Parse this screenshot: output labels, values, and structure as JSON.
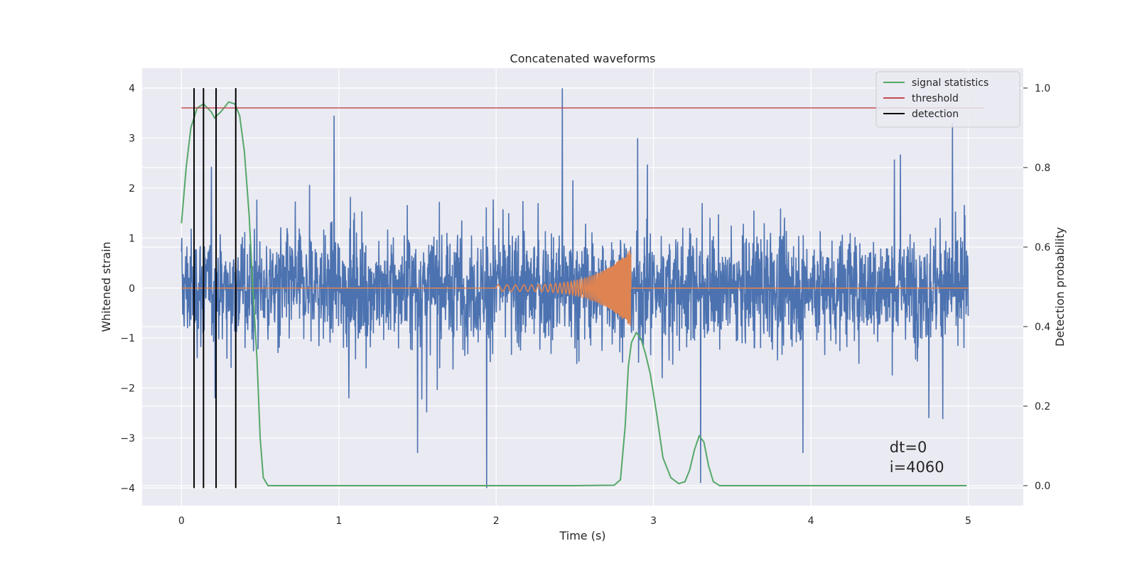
{
  "chart_data": {
    "type": "line",
    "title": "Concatenated waveforms",
    "xlabel": "Time (s)",
    "ylabel": "Whitened strain",
    "y2label": "Detection probability",
    "xlim": [
      -0.25,
      5.35
    ],
    "ylim": [
      -4.35,
      4.4
    ],
    "y2lim": [
      -0.05,
      1.05
    ],
    "xticks": [
      0,
      1,
      2,
      3,
      4,
      5
    ],
    "xticklabels": [
      "0",
      "1",
      "2",
      "3",
      "4",
      "5"
    ],
    "yticks": [
      -4,
      -3,
      -2,
      -1,
      0,
      1,
      2,
      3,
      4
    ],
    "yticklabels": [
      "−4",
      "−3",
      "−2",
      "−1",
      "0",
      "1",
      "2",
      "3",
      "4"
    ],
    "y2ticks": [
      0.0,
      0.2,
      0.4,
      0.6,
      0.8,
      1.0
    ],
    "y2ticklabels": [
      "0.0",
      "0.2",
      "0.4",
      "0.6",
      "0.8",
      "1.0"
    ],
    "grid": true,
    "legend_position": "top-right",
    "legend": [
      {
        "name": "signal statistics",
        "color": "#55a868"
      },
      {
        "name": "threshold",
        "color": "#c44e52"
      },
      {
        "name": "detection",
        "color": "#000000"
      }
    ],
    "series": [
      {
        "name": "",
        "axis": "left",
        "color": "#4c72b0",
        "description": "whitened noise strain, 0–5 s",
        "x_range": [
          0,
          5
        ],
        "spikes": [
          [
            0.97,
            3.45
          ],
          [
            2.42,
            4.0
          ],
          [
            1.94,
            -4.0
          ],
          [
            2.9,
            3.0
          ],
          [
            3.3,
            -3.9
          ],
          [
            4.9,
            3.3
          ],
          [
            4.75,
            -2.6
          ],
          [
            3.95,
            -3.3
          ],
          [
            1.5,
            -3.3
          ]
        ]
      },
      {
        "name": "",
        "axis": "left",
        "color": "#dd8452",
        "description": "injected chirp waveform",
        "x_start": 2.0,
        "x_end": 2.86,
        "peak_amplitude": 0.8
      },
      {
        "name": "signal statistics",
        "axis": "right",
        "color": "#55a868",
        "points": [
          [
            0.0,
            0.66
          ],
          [
            0.03,
            0.8
          ],
          [
            0.06,
            0.9
          ],
          [
            0.1,
            0.95
          ],
          [
            0.14,
            0.96
          ],
          [
            0.19,
            0.94
          ],
          [
            0.21,
            0.925
          ],
          [
            0.25,
            0.94
          ],
          [
            0.3,
            0.965
          ],
          [
            0.34,
            0.96
          ],
          [
            0.37,
            0.93
          ],
          [
            0.4,
            0.84
          ],
          [
            0.43,
            0.68
          ],
          [
            0.45,
            0.52
          ],
          [
            0.48,
            0.32
          ],
          [
            0.5,
            0.12
          ],
          [
            0.52,
            0.02
          ],
          [
            0.55,
            0.0
          ],
          [
            1.5,
            0.0
          ],
          [
            2.5,
            0.0
          ],
          [
            2.75,
            0.001
          ],
          [
            2.79,
            0.015
          ],
          [
            2.82,
            0.15
          ],
          [
            2.84,
            0.3
          ],
          [
            2.86,
            0.36
          ],
          [
            2.89,
            0.385
          ],
          [
            2.92,
            0.37
          ],
          [
            2.95,
            0.33
          ],
          [
            2.98,
            0.28
          ],
          [
            3.02,
            0.18
          ],
          [
            3.06,
            0.07
          ],
          [
            3.11,
            0.02
          ],
          [
            3.16,
            0.005
          ],
          [
            3.2,
            0.01
          ],
          [
            3.23,
            0.04
          ],
          [
            3.26,
            0.09
          ],
          [
            3.29,
            0.125
          ],
          [
            3.32,
            0.11
          ],
          [
            3.35,
            0.05
          ],
          [
            3.38,
            0.01
          ],
          [
            3.42,
            0.0
          ],
          [
            4.0,
            0.0
          ],
          [
            4.99,
            0.0
          ]
        ]
      },
      {
        "name": "threshold",
        "axis": "right",
        "color": "#c44e52",
        "points": [
          [
            0.0,
            0.95
          ],
          [
            5.1,
            0.95
          ]
        ]
      },
      {
        "name": "detection",
        "axis": "left",
        "color": "#000000",
        "vlines": [
          0.08,
          0.14,
          0.22,
          0.345
        ],
        "ymin": -4.0,
        "ymax": 4.0
      }
    ],
    "annotation": {
      "lines": [
        "dt=0",
        "i=4060"
      ],
      "x": 4.5,
      "y": -3.2
    }
  }
}
